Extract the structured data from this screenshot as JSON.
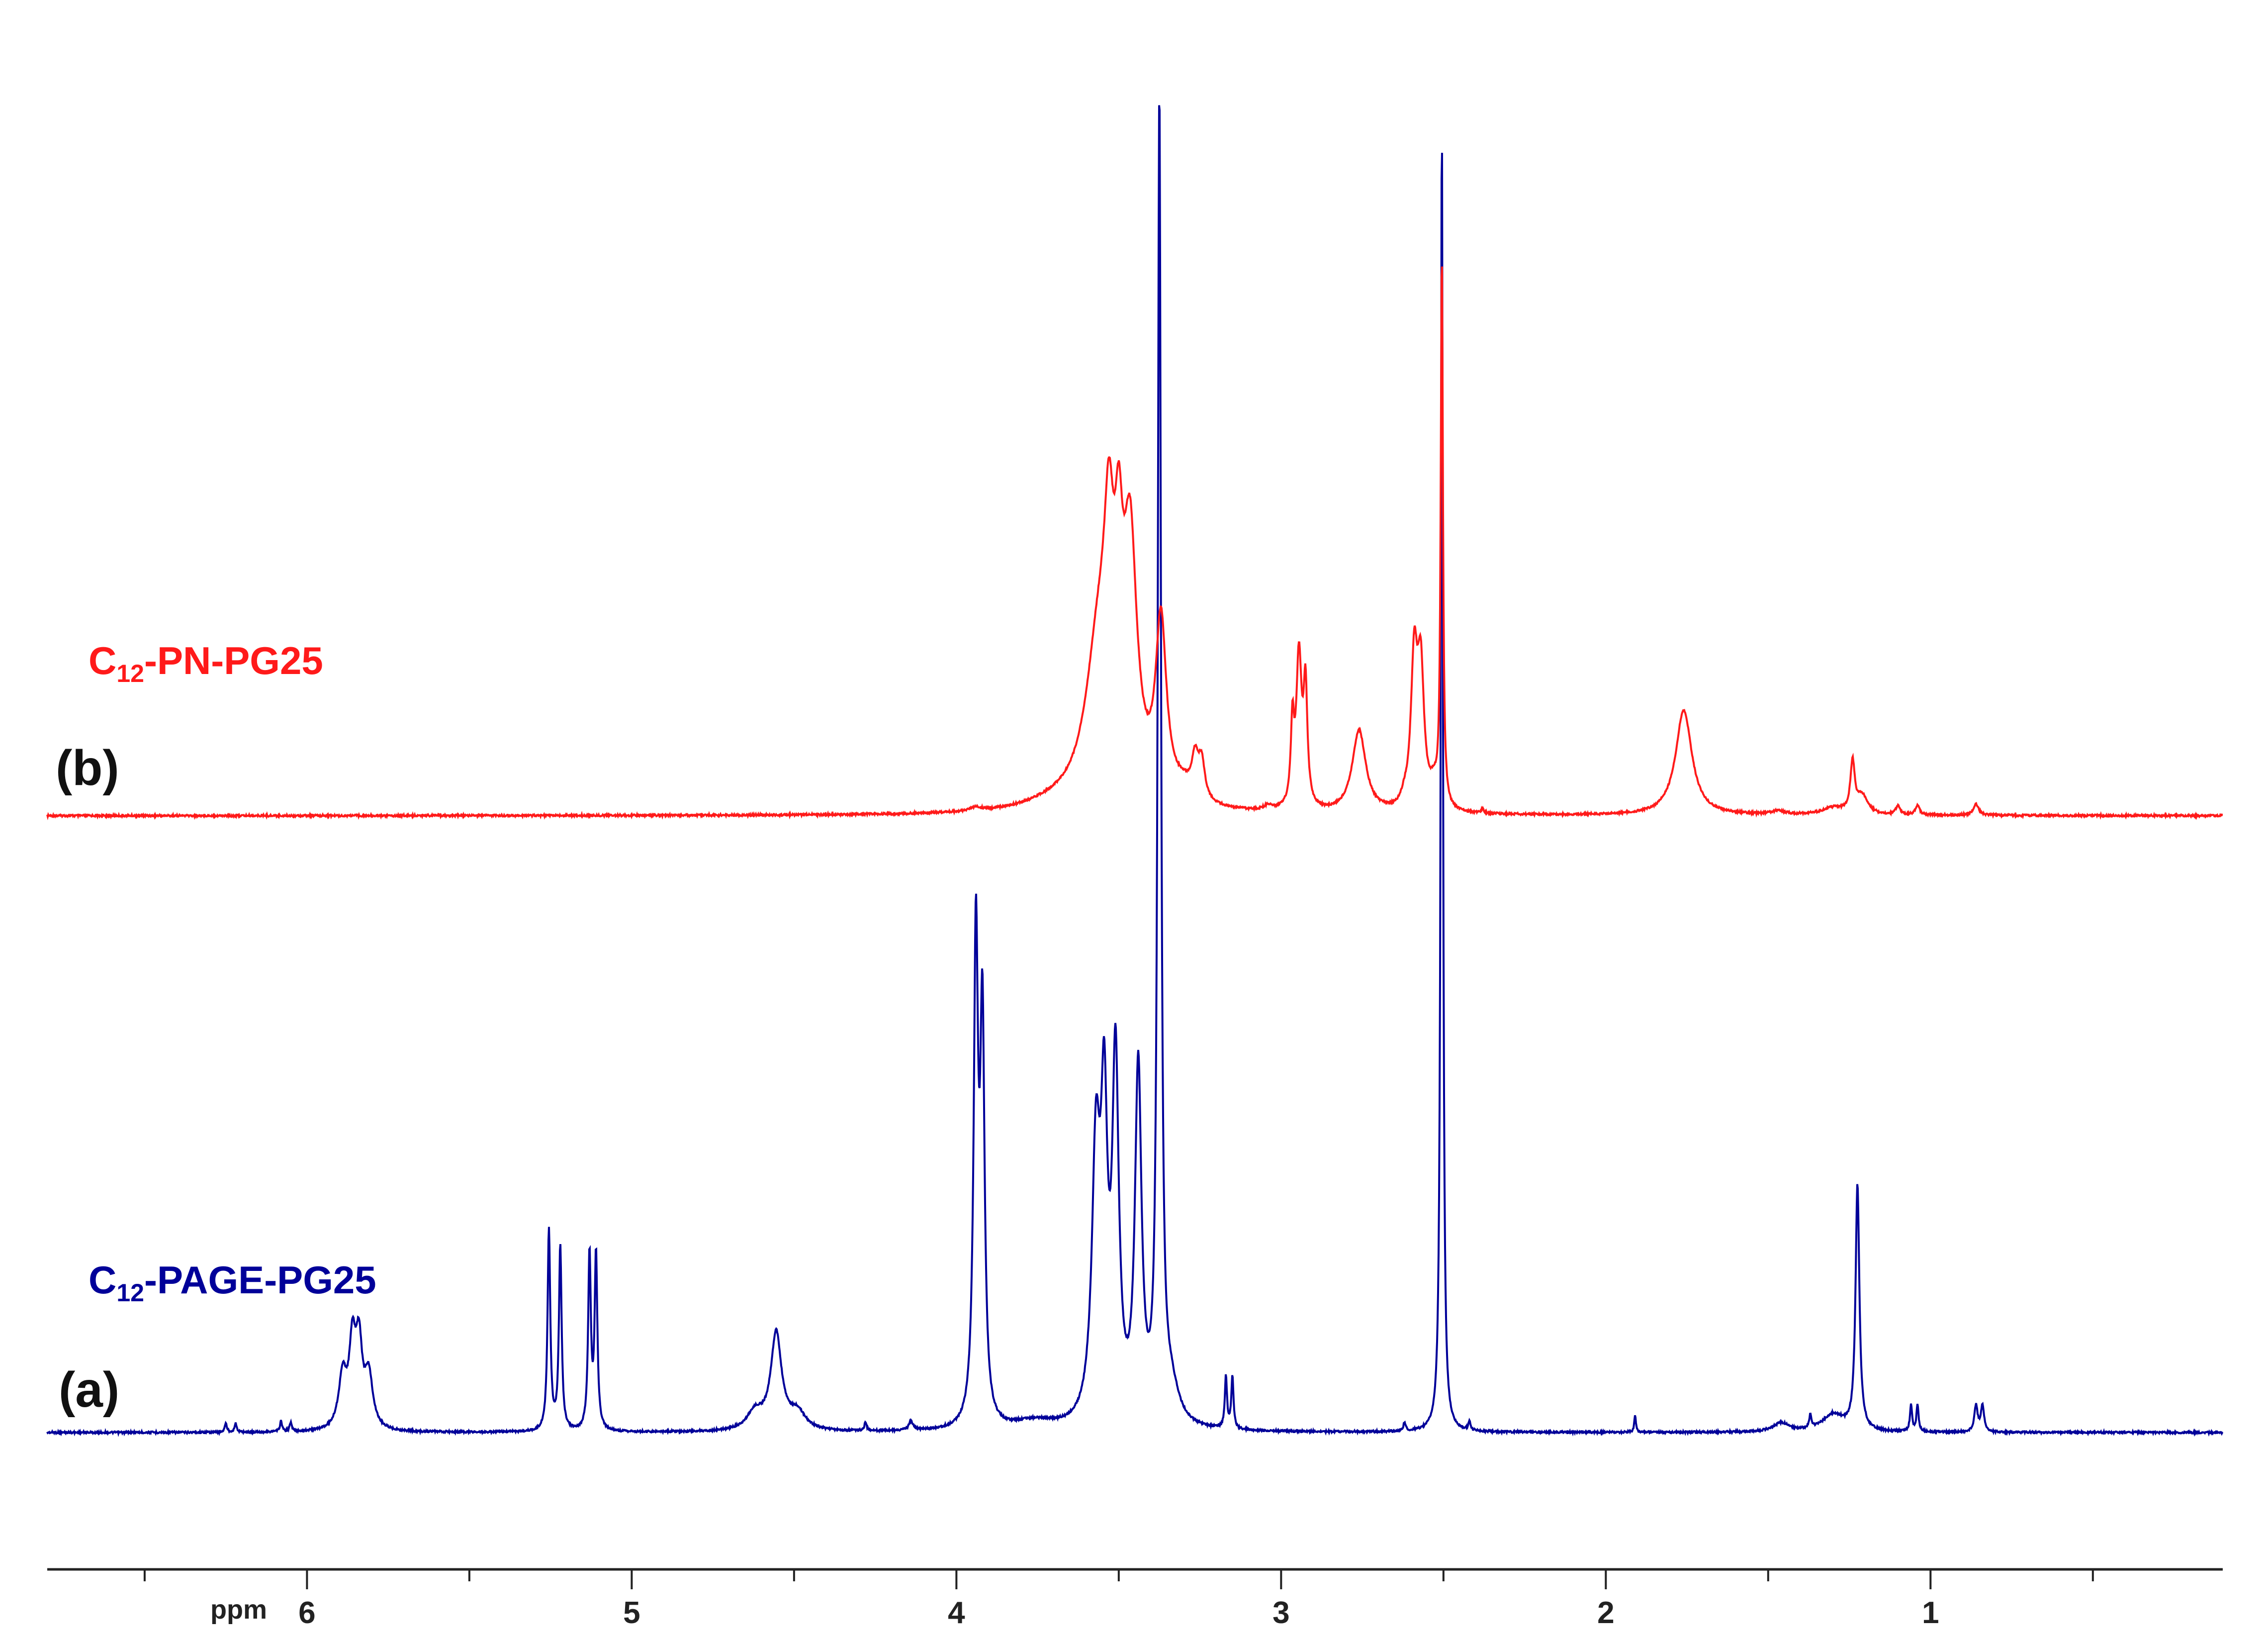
{
  "chart_data": {
    "type": "line",
    "title": "",
    "xlabel": "ppm",
    "ylabel": "",
    "xlim": [
      6.8,
      0.1
    ],
    "x_reversed": true,
    "ylim": [
      0,
      100
    ],
    "grid": false,
    "major_ticks": [
      6,
      5,
      4,
      3,
      2,
      1
    ],
    "minor_ticks": [
      6.5,
      5.5,
      4.5,
      3.5,
      2.5,
      1.5,
      0.5
    ],
    "tick_labels": [
      "6",
      "5",
      "4",
      "3",
      "2",
      "1"
    ],
    "series": [
      {
        "name": "C12-PN-PG25",
        "label_main": "C",
        "label_sub": "12",
        "label_rest": "-PN-PG25",
        "tag": "(b)",
        "color": "#ff1a1a",
        "baseline": 0,
        "peaks": [
          {
            "x": 3.94,
            "h": 0.8,
            "w": 0.02
          },
          {
            "x": 3.7,
            "h": 1.5,
            "w": 0.12
          },
          {
            "x": 3.56,
            "h": 35,
            "w": 0.05
          },
          {
            "x": 3.53,
            "h": 38,
            "w": 0.018
          },
          {
            "x": 3.5,
            "h": 34,
            "w": 0.015
          },
          {
            "x": 3.465,
            "h": 52,
            "w": 0.025
          },
          {
            "x": 3.37,
            "h": 38,
            "w": 0.02
          },
          {
            "x": 3.3,
            "h": 3,
            "w": 0.04
          },
          {
            "x": 3.265,
            "h": 8,
            "w": 0.012
          },
          {
            "x": 3.245,
            "h": 8,
            "w": 0.012
          },
          {
            "x": 3.04,
            "h": 1,
            "w": 0.015
          },
          {
            "x": 2.965,
            "h": 17,
            "w": 0.006
          },
          {
            "x": 2.945,
            "h": 33,
            "w": 0.01
          },
          {
            "x": 2.925,
            "h": 25,
            "w": 0.007
          },
          {
            "x": 2.76,
            "h": 18,
            "w": 0.025
          },
          {
            "x": 2.62,
            "h": 1.5,
            "w": 0.01
          },
          {
            "x": 2.59,
            "h": 32,
            "w": 0.012
          },
          {
            "x": 2.57,
            "h": 29,
            "w": 0.012
          },
          {
            "x": 2.53,
            "h": 4,
            "w": 0.015
          },
          {
            "x": 2.505,
            "h": 120,
            "w": 0.004
          },
          {
            "x": 2.38,
            "h": 1,
            "w": 0.004
          },
          {
            "x": 1.76,
            "h": 23,
            "w": 0.03
          },
          {
            "x": 1.47,
            "h": 0.8,
            "w": 0.025
          },
          {
            "x": 1.3,
            "h": 1.5,
            "w": 0.04
          },
          {
            "x": 1.24,
            "h": 11,
            "w": 0.008
          },
          {
            "x": 1.21,
            "h": 4,
            "w": 0.02
          },
          {
            "x": 1.1,
            "h": 2,
            "w": 0.008
          },
          {
            "x": 1.04,
            "h": 2,
            "w": 0.008
          },
          {
            "x": 0.86,
            "h": 2.5,
            "w": 0.01
          }
        ]
      },
      {
        "name": "C12-PAGE-PG25",
        "label_main": "C",
        "label_sub": "12",
        "label_rest": "-PAGE-PG25",
        "tag": "(a)",
        "color": "#000099",
        "baseline": 0,
        "peaks": [
          {
            "x": 6.25,
            "h": 1,
            "w": 0.004
          },
          {
            "x": 6.22,
            "h": 1,
            "w": 0.004
          },
          {
            "x": 6.08,
            "h": 1.2,
            "w": 0.004
          },
          {
            "x": 6.05,
            "h": 1,
            "w": 0.004
          },
          {
            "x": 5.89,
            "h": 6,
            "w": 0.015
          },
          {
            "x": 5.86,
            "h": 9,
            "w": 0.012
          },
          {
            "x": 5.84,
            "h": 9,
            "w": 0.012
          },
          {
            "x": 5.81,
            "h": 6,
            "w": 0.015
          },
          {
            "x": 5.255,
            "h": 23,
            "w": 0.005
          },
          {
            "x": 5.22,
            "h": 21,
            "w": 0.005
          },
          {
            "x": 5.13,
            "h": 20,
            "w": 0.005
          },
          {
            "x": 5.11,
            "h": 20,
            "w": 0.005
          },
          {
            "x": 4.62,
            "h": 2,
            "w": 0.03
          },
          {
            "x": 4.555,
            "h": 11,
            "w": 0.02
          },
          {
            "x": 4.49,
            "h": 2,
            "w": 0.03
          },
          {
            "x": 4.28,
            "h": 1,
            "w": 0.004
          },
          {
            "x": 4.14,
            "h": 1,
            "w": 0.008
          },
          {
            "x": 3.94,
            "h": 55,
            "w": 0.008
          },
          {
            "x": 3.92,
            "h": 45,
            "w": 0.008
          },
          {
            "x": 3.76,
            "h": 1,
            "w": 0.08
          },
          {
            "x": 3.57,
            "h": 30,
            "w": 0.015
          },
          {
            "x": 3.545,
            "h": 32,
            "w": 0.012
          },
          {
            "x": 3.51,
            "h": 40,
            "w": 0.012
          },
          {
            "x": 3.44,
            "h": 40,
            "w": 0.012
          },
          {
            "x": 3.375,
            "h": 150,
            "w": 0.006
          },
          {
            "x": 3.34,
            "h": 4,
            "w": 0.03
          },
          {
            "x": 3.17,
            "h": 6,
            "w": 0.004
          },
          {
            "x": 3.15,
            "h": 6,
            "w": 0.004
          },
          {
            "x": 2.62,
            "h": 1,
            "w": 0.004
          },
          {
            "x": 2.505,
            "h": 150,
            "w": 0.004
          },
          {
            "x": 2.42,
            "h": 1,
            "w": 0.004
          },
          {
            "x": 1.91,
            "h": 2,
            "w": 0.003
          },
          {
            "x": 1.46,
            "h": 1,
            "w": 0.03
          },
          {
            "x": 1.37,
            "h": 1.5,
            "w": 0.004
          },
          {
            "x": 1.3,
            "h": 2,
            "w": 0.04
          },
          {
            "x": 1.225,
            "h": 28,
            "w": 0.007
          },
          {
            "x": 1.06,
            "h": 3,
            "w": 0.004
          },
          {
            "x": 1.04,
            "h": 3,
            "w": 0.004
          },
          {
            "x": 0.86,
            "h": 3,
            "w": 0.006
          },
          {
            "x": 0.84,
            "h": 3,
            "w": 0.006
          }
        ]
      }
    ]
  }
}
